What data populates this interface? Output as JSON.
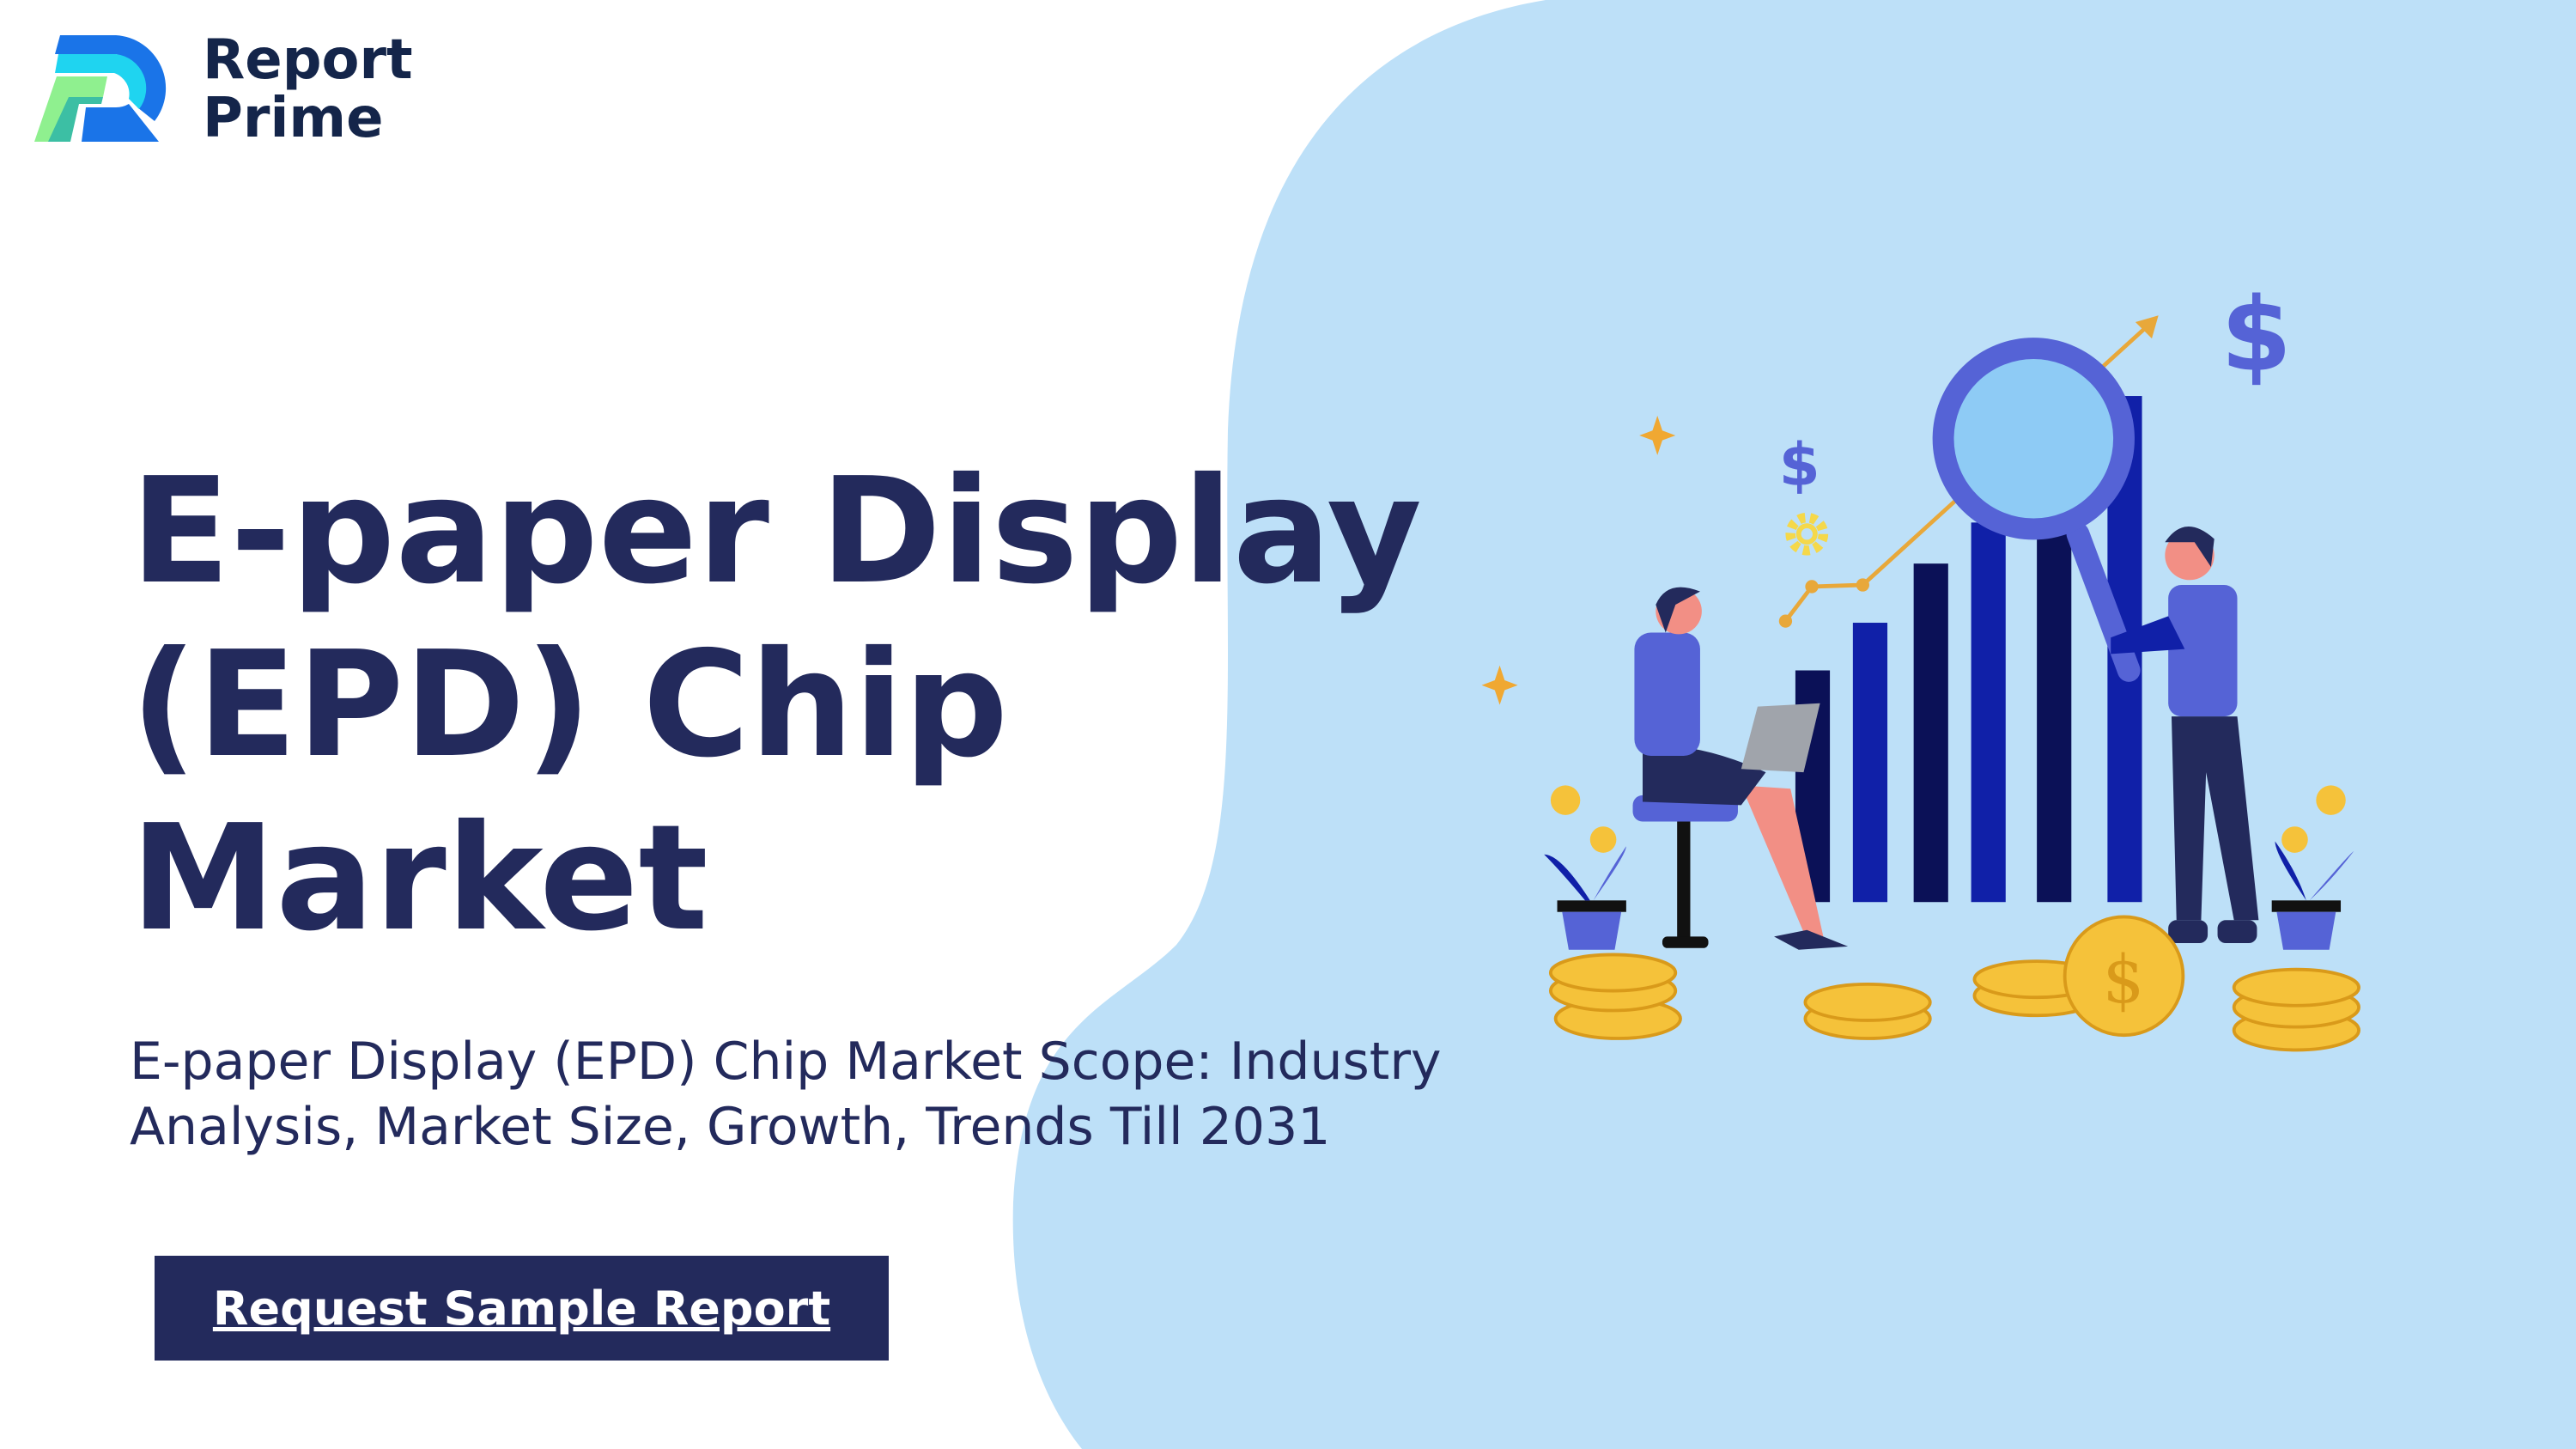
{
  "brand": {
    "name_line1": "Report",
    "name_line2": "Prime"
  },
  "hero": {
    "title": "E-paper Display (EPD) Chip Market",
    "subtitle": "E-paper Display (EPD) Chip Market Scope: Industry Analysis, Market Size, Growth, Trends Till 2031",
    "cta_label": "Request Sample Report"
  },
  "colors": {
    "navy": "#232a5c",
    "blob": "#bde0f8",
    "bar_dark": "#0b1157",
    "bar_blue": "#1020a8",
    "accent_purple": "#5563d6",
    "coin": "#f5c23a"
  },
  "illustration": {
    "icons": [
      "dollar-sign-icon",
      "gear-icon",
      "sparkle-icon",
      "magnifier-icon",
      "trend-arrow-icon",
      "coin-stack-icon",
      "plant-icon"
    ]
  }
}
